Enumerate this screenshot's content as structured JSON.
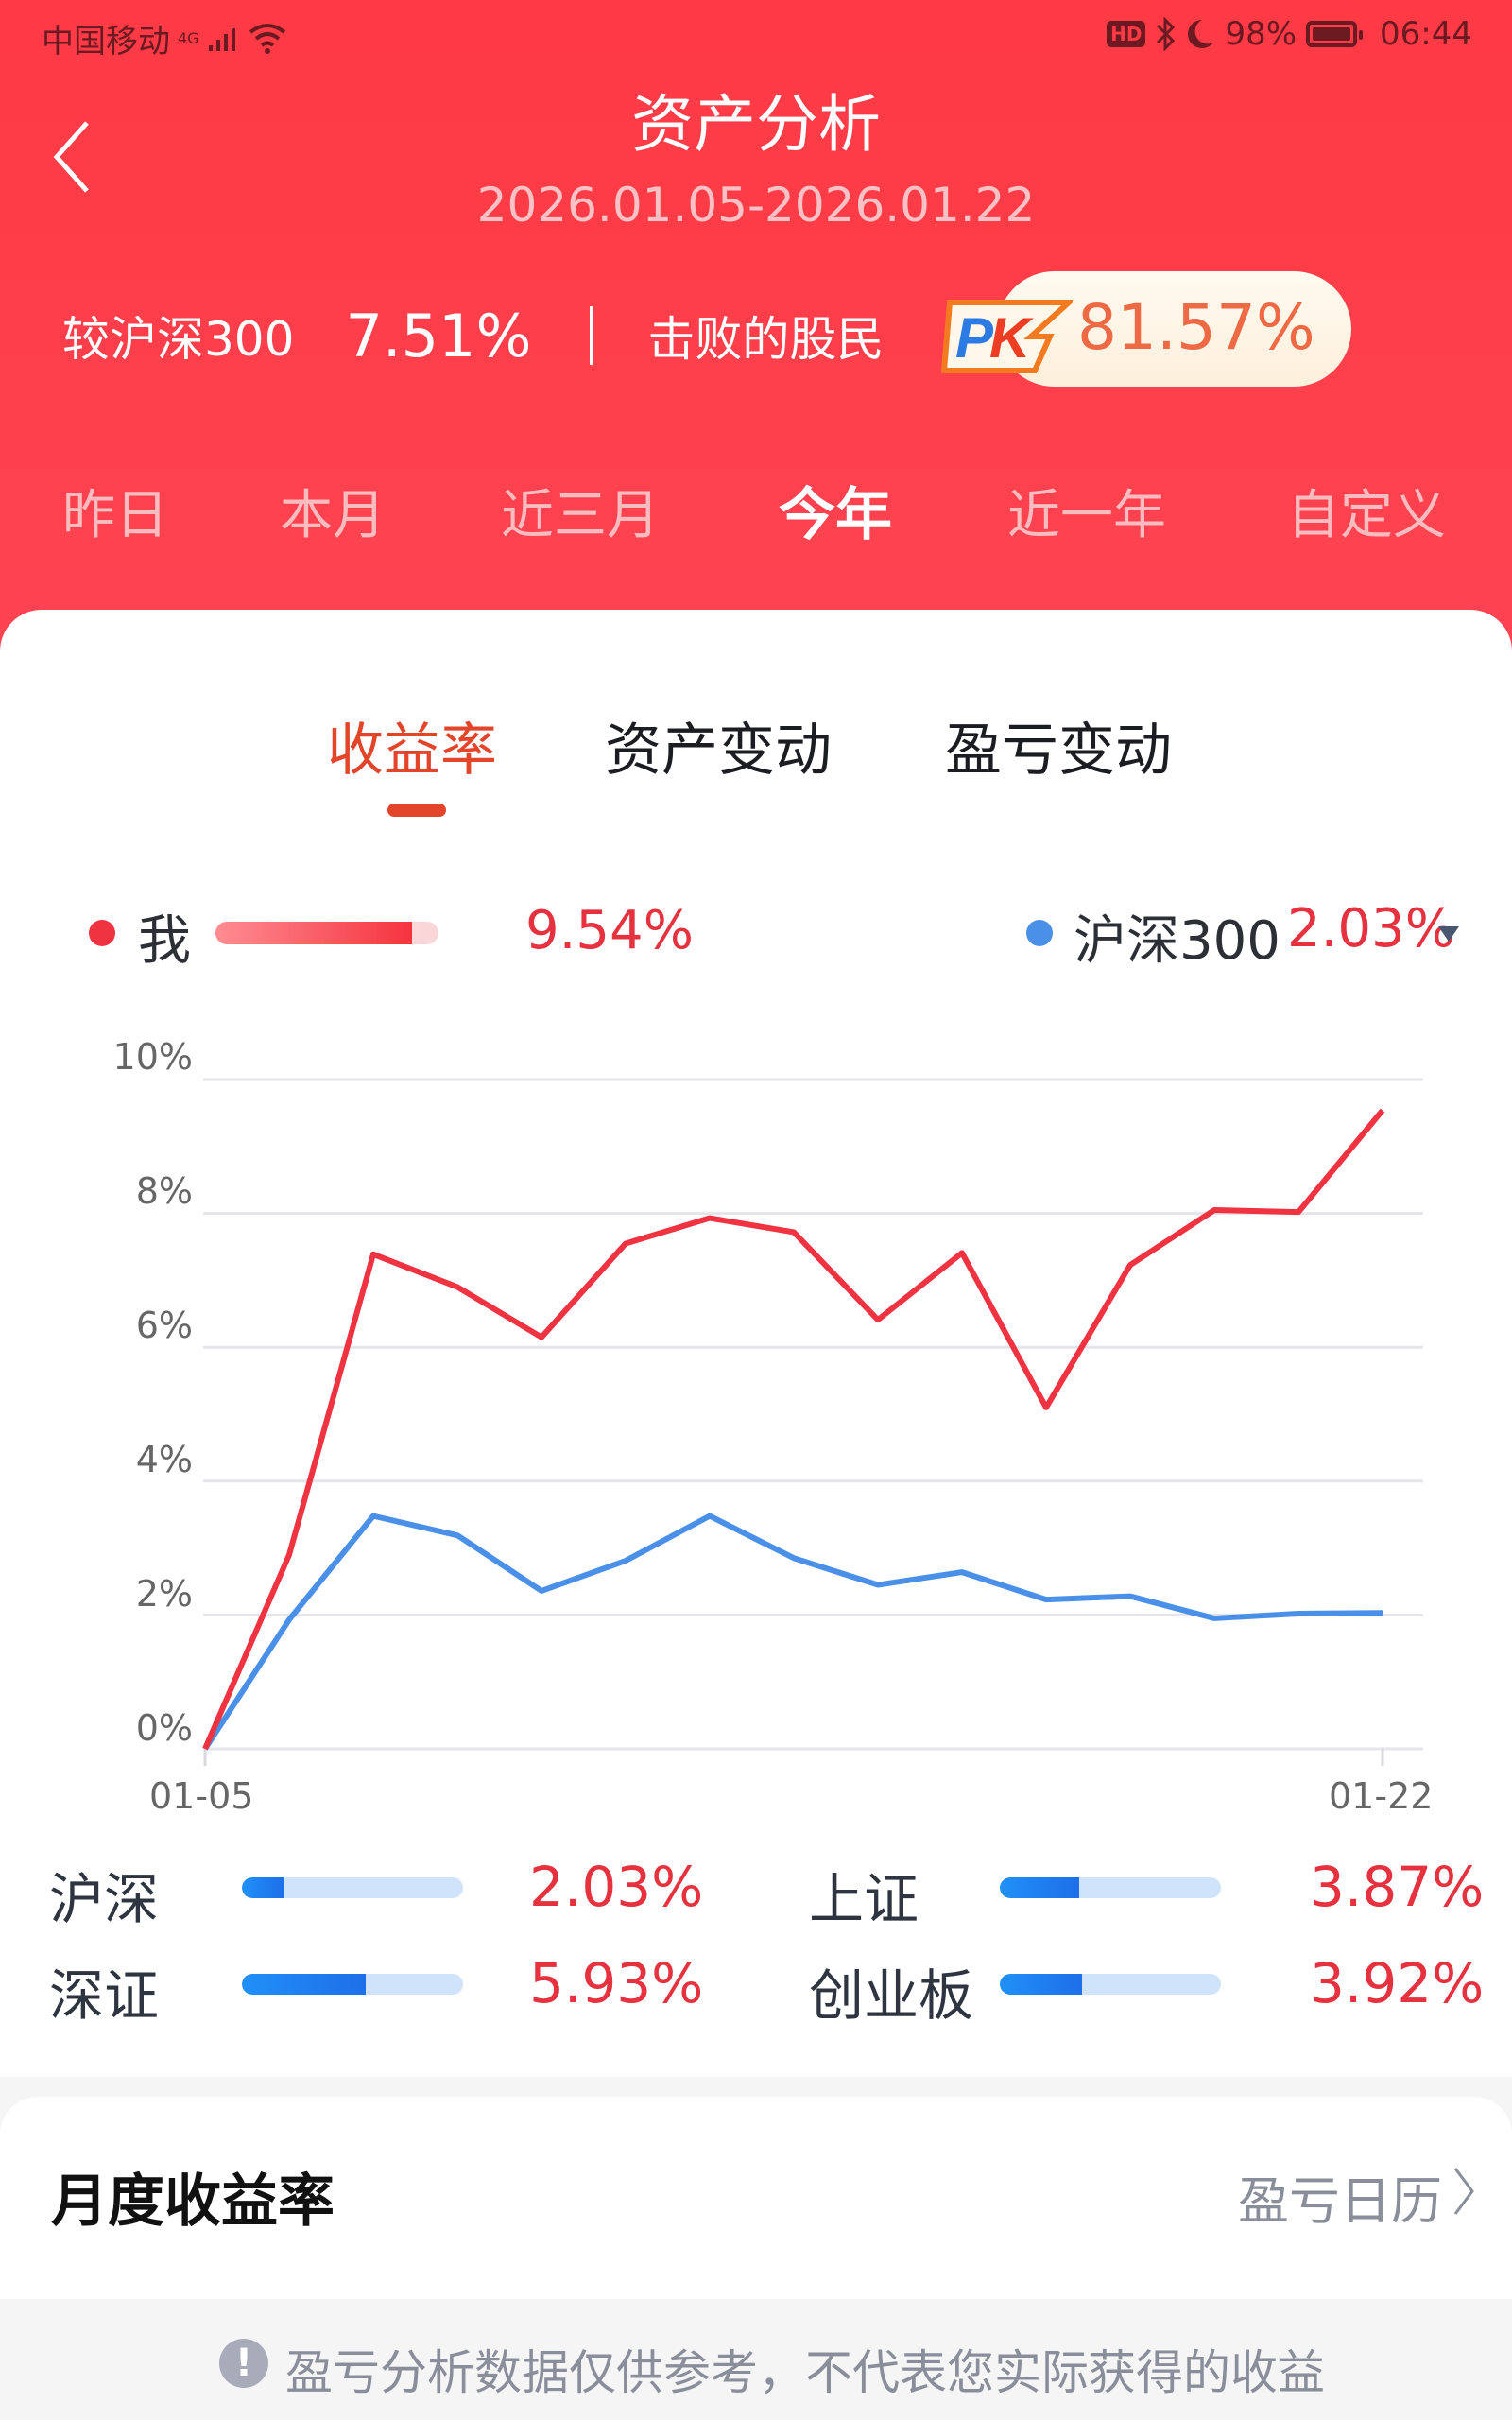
{
  "status_bar": {
    "carrier": "中国移动",
    "network": "4G",
    "hd": "HD",
    "battery": "98%",
    "time": "06:44"
  },
  "header": {
    "title": "资产分析",
    "date_range": "2026.01.05-2026.01.22"
  },
  "summary": {
    "vs_label": "较沪深300",
    "vs_value": "7.51%",
    "beat_label": "击败的股民",
    "pk_badge": "PK",
    "beat_value": "81.57%"
  },
  "periods": [
    {
      "label": "昨日",
      "active": false
    },
    {
      "label": "本月",
      "active": false
    },
    {
      "label": "近三月",
      "active": false
    },
    {
      "label": "今年",
      "active": true
    },
    {
      "label": "近一年",
      "active": false
    },
    {
      "label": "自定义",
      "active": false
    }
  ],
  "sub_tabs": [
    {
      "label": "收益率",
      "active": true
    },
    {
      "label": "资产变动",
      "active": false
    },
    {
      "label": "盈亏变动",
      "active": false
    }
  ],
  "legend": {
    "me_label": "我",
    "me_value": "9.54%",
    "bench_label": "沪深300",
    "bench_value": "2.03%"
  },
  "colors": {
    "header_red": "#fe3a45",
    "me_line": "#ef3340",
    "bench_line": "#4a90e8",
    "active_tab": "#e2452a",
    "positive": "#e5323e"
  },
  "chart_data": {
    "type": "line",
    "title": "收益率",
    "xlabel": "",
    "ylabel": "",
    "x_tick_labels": [
      "01-05",
      "01-22"
    ],
    "y_tick_labels": [
      "0%",
      "2%",
      "4%",
      "6%",
      "8%",
      "10%"
    ],
    "ylim": [
      0,
      10
    ],
    "grid": true,
    "legend_position": "top",
    "x": [
      1,
      2,
      3,
      4,
      5,
      6,
      7,
      8,
      9,
      10,
      11,
      12,
      13,
      14,
      15
    ],
    "series": [
      {
        "name": "我",
        "color": "#ef3340",
        "values": [
          0,
          2.9,
          7.39,
          6.9,
          6.15,
          7.55,
          7.93,
          7.72,
          6.41,
          7.41,
          5.1,
          7.23,
          8.05,
          8.02,
          9.54
        ]
      },
      {
        "name": "沪深300",
        "color": "#4a90e8",
        "values": [
          0,
          1.93,
          3.48,
          3.19,
          2.36,
          2.81,
          3.48,
          2.85,
          2.45,
          2.64,
          2.23,
          2.28,
          1.95,
          2.02,
          2.03
        ]
      }
    ]
  },
  "indices": [
    {
      "name": "沪深",
      "value": "2.03%",
      "fill_pct": 19
    },
    {
      "name": "上证",
      "value": "3.87%",
      "fill_pct": 36
    },
    {
      "name": "深证",
      "value": "5.93%",
      "fill_pct": 56
    },
    {
      "name": "创业板",
      "value": "3.92%",
      "fill_pct": 37
    }
  ],
  "monthly": {
    "title": "月度收益率",
    "link": "盈亏日历"
  },
  "footer": {
    "disclaimer": "盈亏分析数据仅供参考，不代表您实际获得的收益"
  }
}
